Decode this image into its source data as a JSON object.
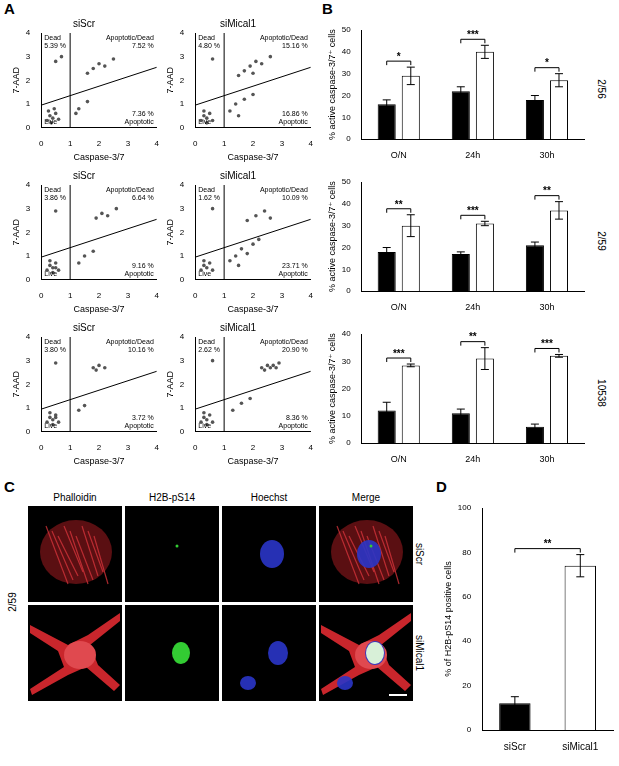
{
  "panel_labels": [
    "A",
    "B",
    "C",
    "D"
  ],
  "chart_data": [
    {
      "type": "scatter",
      "title": "siScr",
      "x_label": "Caspase-3/7",
      "y_label": "7-AAD",
      "xlim": [
        0,
        4
      ],
      "ylim": [
        0,
        4
      ],
      "xticks": [
        0,
        1,
        2,
        3,
        4
      ],
      "yticks": [
        0,
        1,
        2,
        3,
        4
      ],
      "grid": false,
      "color": "#555555",
      "x": [
        0.2,
        0.3,
        0.4,
        0.5,
        0.25,
        0.6,
        0.35,
        0.45,
        1.3,
        1.6,
        1.2,
        1.8,
        2.0,
        2.2,
        1.6,
        2.5,
        0.5,
        0.7
      ],
      "values": [
        0.3,
        0.5,
        0.4,
        0.6,
        0.7,
        0.35,
        0.2,
        0.8,
        0.8,
        1.1,
        0.6,
        2.5,
        2.7,
        2.6,
        2.3,
        2.9,
        2.8,
        3.0
      ],
      "gate_x": 1,
      "gate_line": {
        "x": [
          0,
          4
        ],
        "y": [
          0.95,
          2.55
        ]
      },
      "annotations": [
        {
          "text": "Dead",
          "value": 5.39,
          "label": "5.39 %"
        },
        {
          "text": "Apoptotic/Dead",
          "value": 7.52,
          "label": "7.52 %"
        },
        {
          "text": "Live"
        },
        {
          "text": "Apoptotic",
          "value": 7.36,
          "label": "7.36 %"
        }
      ]
    },
    {
      "type": "scatter",
      "title": "siMical1",
      "x_label": "Caspase-3/7",
      "y_label": "7-AAD",
      "xlim": [
        0,
        4
      ],
      "ylim": [
        0,
        4
      ],
      "xticks": [
        0,
        1,
        2,
        3,
        4
      ],
      "yticks": [
        0,
        1,
        2,
        3,
        4
      ],
      "grid": false,
      "color": "#555555",
      "x": [
        0.2,
        0.3,
        0.4,
        0.5,
        0.3,
        0.6,
        0.4,
        1.2,
        1.4,
        1.7,
        1.5,
        2.0,
        1.7,
        1.9,
        2.1,
        2.3,
        1.5,
        2.6,
        2.0,
        0.6
      ],
      "values": [
        0.3,
        0.5,
        0.4,
        0.6,
        0.7,
        0.3,
        0.2,
        0.7,
        1.0,
        1.2,
        0.5,
        1.4,
        2.4,
        2.6,
        2.8,
        2.7,
        2.2,
        3.0,
        2.3,
        2.9
      ],
      "gate_x": 1,
      "gate_line": {
        "x": [
          0,
          4
        ],
        "y": [
          0.95,
          2.55
        ]
      },
      "annotations": [
        {
          "text": "Dead",
          "value": 4.8,
          "label": "4.80 %"
        },
        {
          "text": "Apoptotic/Dead",
          "value": 15.16,
          "label": "15.16 %"
        },
        {
          "text": "Live"
        },
        {
          "text": "Apoptotic",
          "value": 16.86,
          "label": "16.86 %"
        }
      ]
    },
    {
      "type": "scatter",
      "title": "siScr",
      "x_label": "Caspase-3/7",
      "y_label": "7-AAD",
      "xlim": [
        0,
        4
      ],
      "ylim": [
        0,
        4
      ],
      "xticks": [
        0,
        1,
        2,
        3,
        4
      ],
      "yticks": [
        0,
        1,
        2,
        3,
        4
      ],
      "grid": false,
      "color": "#555555",
      "x": [
        0.2,
        0.3,
        0.4,
        0.5,
        0.3,
        0.6,
        0.4,
        0.5,
        1.3,
        1.5,
        1.8,
        1.9,
        2.1,
        2.3,
        2.6,
        0.5
      ],
      "values": [
        0.4,
        0.6,
        0.5,
        0.7,
        0.8,
        0.4,
        0.3,
        0.5,
        0.7,
        1.0,
        1.2,
        2.6,
        2.8,
        2.7,
        3.0,
        2.9
      ],
      "gate_x": 1,
      "gate_line": {
        "x": [
          0,
          4
        ],
        "y": [
          0.95,
          2.55
        ]
      },
      "annotations": [
        {
          "text": "Dead",
          "value": 3.86,
          "label": "3.86 %"
        },
        {
          "text": "Apoptotic/Dead",
          "value": 6.64,
          "label": "6.64 %"
        },
        {
          "text": "Live"
        },
        {
          "text": "Apoptotic",
          "value": 9.16,
          "label": "9.16 %"
        }
      ]
    },
    {
      "type": "scatter",
      "title": "siMical1",
      "x_label": "Caspase-3/7",
      "y_label": "7-AAD",
      "xlim": [
        0,
        4
      ],
      "ylim": [
        0,
        4
      ],
      "xticks": [
        0,
        1,
        2,
        3,
        4
      ],
      "yticks": [
        0,
        1,
        2,
        3,
        4
      ],
      "grid": false,
      "color": "#555555",
      "x": [
        0.2,
        0.3,
        0.4,
        0.5,
        0.3,
        0.6,
        1.2,
        1.4,
        1.6,
        1.8,
        2.0,
        2.2,
        1.5,
        1.8,
        2.1,
        2.4,
        2.6,
        0.6
      ],
      "values": [
        0.4,
        0.6,
        0.5,
        0.7,
        0.8,
        0.4,
        0.8,
        1.0,
        1.3,
        1.1,
        1.5,
        1.7,
        0.6,
        2.5,
        2.7,
        2.9,
        2.6,
        3.0
      ],
      "gate_x": 1,
      "gate_line": {
        "x": [
          0,
          4
        ],
        "y": [
          0.95,
          2.55
        ]
      },
      "annotations": [
        {
          "text": "Dead",
          "value": 1.62,
          "label": "1.62 %"
        },
        {
          "text": "Apoptotic/Dead",
          "value": 10.09,
          "label": "10.09 %"
        },
        {
          "text": "Live"
        },
        {
          "text": "Apoptotic",
          "value": 23.71,
          "label": "23.71 %"
        }
      ]
    },
    {
      "type": "scatter",
      "title": "siScr",
      "x_label": "Caspase-3/7",
      "y_label": "7-AAD",
      "xlim": [
        0,
        4
      ],
      "ylim": [
        0,
        4
      ],
      "xticks": [
        0,
        1,
        2,
        3,
        4
      ],
      "yticks": [
        0,
        1,
        2,
        3,
        4
      ],
      "grid": false,
      "color": "#555555",
      "x": [
        0.2,
        0.3,
        0.4,
        0.5,
        0.3,
        0.6,
        0.4,
        0.5,
        1.3,
        1.5,
        1.8,
        2.0,
        2.2,
        1.9,
        0.5
      ],
      "values": [
        0.4,
        0.6,
        0.5,
        0.7,
        0.8,
        0.4,
        0.3,
        0.6,
        0.9,
        1.1,
        2.7,
        2.8,
        2.7,
        2.6,
        2.9
      ],
      "gate_x": 1,
      "gate_line": {
        "x": [
          0,
          4
        ],
        "y": [
          0.95,
          2.55
        ]
      },
      "annotations": [
        {
          "text": "Dead",
          "value": 3.8,
          "label": "3.80 %"
        },
        {
          "text": "Apoptotic/Dead",
          "value": 10.16,
          "label": "10.16 %"
        },
        {
          "text": "Live"
        },
        {
          "text": "Apoptotic",
          "value": 3.72,
          "label": "3.72 %"
        }
      ]
    },
    {
      "type": "scatter",
      "title": "siMical1",
      "x_label": "Caspase-3/7",
      "y_label": "7-AAD",
      "xlim": [
        0,
        4
      ],
      "ylim": [
        0,
        4
      ],
      "xticks": [
        0,
        1,
        2,
        3,
        4
      ],
      "yticks": [
        0,
        1,
        2,
        3,
        4
      ],
      "grid": false,
      "color": "#555555",
      "x": [
        0.2,
        0.3,
        0.4,
        0.5,
        0.3,
        0.6,
        0.4,
        1.3,
        1.6,
        1.9,
        2.3,
        2.5,
        2.7,
        2.9,
        2.4,
        2.6,
        2.8,
        0.6
      ],
      "values": [
        0.4,
        0.6,
        0.5,
        0.7,
        0.8,
        0.4,
        0.3,
        0.9,
        1.2,
        1.4,
        2.7,
        2.8,
        2.8,
        2.9,
        2.6,
        2.7,
        2.7,
        3.0
      ],
      "gate_x": 1,
      "gate_line": {
        "x": [
          0,
          4
        ],
        "y": [
          0.95,
          2.55
        ]
      },
      "annotations": [
        {
          "text": "Dead",
          "value": 2.62,
          "label": "2.62 %"
        },
        {
          "text": "Apoptotic/Dead",
          "value": 20.9,
          "label": "20.90 %"
        },
        {
          "text": "Live"
        },
        {
          "text": "Apoptotic",
          "value": 8.36,
          "label": "8.36 %"
        }
      ]
    },
    {
      "type": "bar",
      "subtitle": "2/56",
      "y_label": "% active caspase-3/7⁺ cells",
      "categories": [
        "O/N",
        "24h",
        "30h"
      ],
      "ylim": [
        0,
        50
      ],
      "yticks": [
        0,
        10,
        20,
        30,
        40,
        50
      ],
      "grid": false,
      "series": [
        {
          "color": "#000000",
          "values": [
            16,
            22,
            18
          ],
          "errors": [
            2,
            2,
            2
          ]
        },
        {
          "color": "#ffffff",
          "values": [
            29,
            40,
            27
          ],
          "errors": [
            4,
            3,
            3
          ]
        }
      ],
      "annotations": [
        "*",
        "***",
        "*"
      ]
    },
    {
      "type": "bar",
      "subtitle": "2/59",
      "y_label": "% active caspase-3/7⁺ cells",
      "categories": [
        "O/N",
        "24h",
        "30h"
      ],
      "ylim": [
        0,
        50
      ],
      "yticks": [
        0,
        10,
        20,
        30,
        40,
        50
      ],
      "grid": false,
      "series": [
        {
          "color": "#000000",
          "values": [
            18,
            17,
            21
          ],
          "errors": [
            2,
            1,
            1.5
          ]
        },
        {
          "color": "#ffffff",
          "values": [
            30,
            31,
            37
          ],
          "errors": [
            5,
            1,
            4
          ]
        }
      ],
      "annotations": [
        "**",
        "***",
        "**"
      ]
    },
    {
      "type": "bar",
      "subtitle": "10538",
      "y_label": "% active caspase-3/7⁺ cells",
      "categories": [
        "O/N",
        "24h",
        "30h"
      ],
      "ylim": [
        0,
        40
      ],
      "yticks": [
        0,
        10,
        20,
        30,
        40
      ],
      "grid": false,
      "series": [
        {
          "color": "#000000",
          "values": [
            12,
            11,
            6
          ],
          "errors": [
            3,
            1.5,
            1
          ]
        },
        {
          "color": "#ffffff",
          "values": [
            28.5,
            31,
            32
          ],
          "errors": [
            0.5,
            4,
            0.5
          ]
        }
      ],
      "annotations": [
        "***",
        "**",
        "***"
      ]
    },
    {
      "type": "bar",
      "y_label": "% of H2B-pS14 positive cells",
      "categories": [
        "siScr",
        "siMical1"
      ],
      "values": [
        12,
        74
      ],
      "errors": [
        3,
        5
      ],
      "colors": [
        "#000000",
        "#ffffff"
      ],
      "ylim": [
        0,
        100
      ],
      "yticks": [
        0,
        20,
        40,
        60,
        80,
        100
      ],
      "grid": false,
      "annotations": [
        "**"
      ]
    }
  ],
  "microscopy": {
    "row_group": "2/59",
    "columns": [
      "Phalloidin",
      "H2B-pS14",
      "Hoechst",
      "Merge"
    ],
    "rows": [
      "siScr",
      "siMical1"
    ]
  }
}
